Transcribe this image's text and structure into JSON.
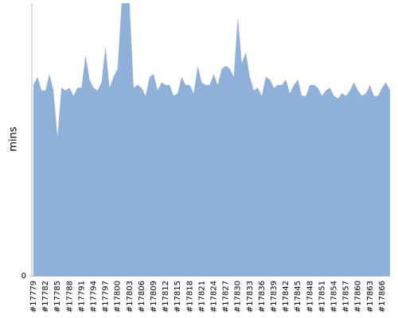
{
  "chart_data": {
    "type": "area",
    "y_label": "mins",
    "color": "#8fb0d9",
    "categories": [
      "#17779",
      null,
      null,
      "#17782",
      null,
      null,
      "#17785",
      null,
      null,
      "#17788",
      null,
      null,
      "#17791",
      null,
      null,
      "#17794",
      null,
      null,
      "#17797",
      null,
      null,
      "#17800",
      null,
      null,
      "#17803",
      null,
      null,
      "#17806",
      null,
      null,
      "#17809",
      null,
      null,
      "#17812",
      null,
      null,
      "#17815",
      null,
      null,
      "#17818",
      null,
      null,
      "#17821",
      null,
      null,
      "#17824",
      null,
      null,
      "#17827",
      null,
      null,
      "#17830",
      null,
      null,
      "#17833",
      null,
      null,
      "#17836",
      null,
      null,
      "#17839",
      null,
      null,
      "#17842",
      null,
      null,
      "#17845",
      null,
      null,
      "#17848",
      null,
      null,
      "#17851",
      null,
      null,
      "#17854",
      null,
      null,
      "#17857",
      null,
      null,
      "#17860",
      null,
      null,
      "#17863",
      null,
      null,
      "#17866",
      null,
      null
    ],
    "values": [
      70,
      73,
      68,
      68,
      74,
      68,
      51,
      69,
      68,
      69,
      66,
      69,
      69,
      81,
      72,
      69,
      68,
      71,
      84,
      69,
      73,
      76,
      100,
      100,
      100,
      69,
      70,
      69,
      66,
      73,
      74,
      68,
      71,
      70,
      70,
      66,
      67,
      73,
      70,
      70,
      67,
      77,
      71,
      70,
      70,
      74,
      70,
      76,
      77,
      76,
      73,
      95,
      78,
      82,
      73,
      68,
      69,
      66,
      73,
      72,
      69,
      70,
      70,
      72,
      67,
      70,
      72,
      66,
      66,
      70,
      70,
      69,
      66,
      68,
      69,
      66,
      65,
      67,
      66,
      68,
      71,
      68,
      66,
      67,
      70,
      66,
      66,
      69,
      71,
      68
    ],
    "ylim": [
      0,
      100
    ],
    "yticks": [
      0
    ]
  }
}
